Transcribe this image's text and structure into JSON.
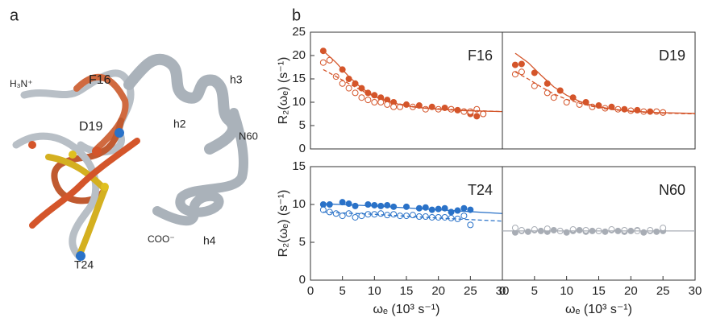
{
  "figure": {
    "panel_a": "a",
    "panel_b": "b",
    "structure_labels": [
      "H₃N⁺",
      "F16",
      "D19",
      "T24",
      "h3",
      "h2",
      "N60",
      "COO⁻",
      "h4"
    ]
  },
  "chart_data": [
    {
      "type": "scatter",
      "title": "F16",
      "ylabel": "R₂(ωₑ) (s⁻¹)",
      "xlim": [
        0,
        30
      ],
      "ylim": [
        0,
        25
      ],
      "yticks": [
        0,
        5,
        10,
        15,
        20,
        25
      ],
      "series": [
        {
          "style": "filled",
          "color": "#d4552a",
          "x": [
            2,
            3,
            5,
            6,
            7,
            8,
            9,
            10,
            11,
            12,
            13,
            15,
            17,
            19,
            21,
            22,
            23,
            24,
            25,
            26,
            27
          ],
          "values": [
            21,
            19,
            17,
            15,
            14,
            13,
            12,
            11.5,
            11,
            10.5,
            10,
            9.5,
            9.3,
            9,
            8.8,
            8.5,
            8.3,
            8,
            7.5,
            7,
            7.5
          ]
        },
        {
          "style": "open",
          "color": "#d4552a",
          "x": [
            2,
            3,
            4,
            5,
            6,
            7,
            8,
            9,
            10,
            11,
            12,
            13,
            14,
            16,
            18,
            20,
            22,
            24,
            25,
            26,
            27
          ],
          "values": [
            18.5,
            19,
            15.5,
            14,
            13,
            12,
            11,
            10.5,
            10,
            10,
            9.5,
            9,
            9,
            9,
            8.5,
            8.5,
            8.5,
            8,
            8,
            8.5,
            7.5
          ]
        },
        {
          "style": "line",
          "color": "#d4552a",
          "x": [
            2,
            4,
            6,
            8,
            10,
            12,
            14,
            16,
            18,
            20,
            24,
            30
          ],
          "values": [
            21,
            18.5,
            15.5,
            13,
            11.3,
            10.2,
            9.5,
            9,
            8.7,
            8.5,
            8.2,
            8
          ]
        },
        {
          "style": "dashed",
          "color": "#d4552a",
          "x": [
            2,
            4,
            6,
            8,
            10,
            12,
            14,
            16,
            18,
            20,
            24,
            30
          ],
          "values": [
            17,
            15.5,
            14,
            12.5,
            11.2,
            10.3,
            9.6,
            9.1,
            8.8,
            8.6,
            8.3,
            8
          ]
        }
      ]
    },
    {
      "type": "scatter",
      "title": "D19",
      "xlim": [
        0,
        30
      ],
      "ylim": [
        0,
        25
      ],
      "series": [
        {
          "style": "filled",
          "color": "#d4552a",
          "x": [
            2,
            3,
            5,
            7,
            9,
            11,
            13,
            15,
            17,
            19,
            21,
            23,
            25
          ],
          "values": [
            18,
            18.2,
            16.3,
            14,
            12.5,
            11,
            10,
            9.3,
            9,
            8.5,
            8.3,
            8,
            7.8
          ]
        },
        {
          "style": "open",
          "color": "#d4552a",
          "x": [
            2,
            3,
            5,
            7,
            8,
            10,
            12,
            14,
            16,
            18,
            20,
            22,
            24,
            25
          ],
          "values": [
            16,
            16.5,
            13.5,
            12,
            11,
            10,
            9.5,
            9,
            8.7,
            8.5,
            8.2,
            8,
            8,
            7.8
          ]
        },
        {
          "style": "line",
          "color": "#d4552a",
          "x": [
            2,
            4,
            6,
            8,
            10,
            12,
            14,
            16,
            18,
            20,
            24,
            30
          ],
          "values": [
            20.5,
            18.5,
            15.8,
            13.3,
            11.5,
            10.2,
            9.3,
            8.8,
            8.4,
            8.1,
            7.8,
            7.6
          ]
        },
        {
          "style": "dashed",
          "color": "#d4552a",
          "x": [
            2,
            4,
            6,
            8,
            10,
            12,
            14,
            16,
            18,
            20,
            24,
            30
          ],
          "values": [
            16.5,
            15,
            13.3,
            11.8,
            10.6,
            9.8,
            9.1,
            8.6,
            8.3,
            8,
            7.7,
            7.5
          ]
        }
      ]
    },
    {
      "type": "scatter",
      "title": "T24",
      "ylabel": "R₂(ωₑ) (s⁻¹)",
      "xlabel": "ωₑ (10³ s⁻¹)",
      "xlim": [
        0,
        30
      ],
      "ylim": [
        0,
        15
      ],
      "xticks": [
        0,
        5,
        10,
        15,
        20,
        25,
        30
      ],
      "yticks": [
        0,
        5,
        10,
        15
      ],
      "series": [
        {
          "style": "filled",
          "color": "#2a72c8",
          "x": [
            2,
            3,
            5,
            6,
            7,
            9,
            10,
            11,
            12,
            13,
            15,
            17,
            18,
            19,
            20,
            21,
            22,
            23,
            24,
            25
          ],
          "values": [
            10,
            10,
            10.3,
            10.1,
            9.8,
            10,
            9.9,
            9.8,
            9.9,
            9.7,
            9.7,
            9.5,
            9.6,
            9.3,
            9.4,
            9.5,
            9,
            9.2,
            9.5,
            9.3
          ]
        },
        {
          "style": "open",
          "color": "#2a72c8",
          "x": [
            2,
            3,
            4,
            5,
            6,
            7,
            8,
            9,
            10,
            11,
            12,
            13,
            14,
            15,
            16,
            17,
            18,
            19,
            20,
            21,
            22,
            23,
            24,
            25
          ],
          "values": [
            9.3,
            9,
            8.8,
            8.5,
            8.8,
            8.3,
            8.5,
            8.7,
            8.7,
            8.8,
            8.6,
            8.7,
            8.5,
            8.5,
            8.6,
            8.4,
            8.4,
            8.3,
            8.3,
            8.3,
            8.2,
            8.1,
            8.5,
            7.3
          ]
        },
        {
          "style": "line",
          "color": "#2a72c8",
          "x": [
            2,
            10,
            20,
            30
          ],
          "values": [
            10.1,
            9.8,
            9.3,
            8.8
          ]
        },
        {
          "style": "dashed",
          "color": "#2a72c8",
          "x": [
            2,
            10,
            20,
            30
          ],
          "values": [
            9,
            8.7,
            8.2,
            7.8
          ]
        }
      ]
    },
    {
      "type": "scatter",
      "title": "N60",
      "xlabel": "ωₑ (10³ s⁻¹)",
      "xlim": [
        0,
        30
      ],
      "ylim": [
        0,
        15
      ],
      "xticks": [
        0,
        5,
        10,
        15,
        20,
        25,
        30
      ],
      "series": [
        {
          "style": "filled",
          "color": "#a8adb5",
          "x": [
            2,
            3,
            4,
            5,
            6,
            7,
            8,
            9,
            10,
            11,
            12,
            13,
            14,
            15,
            16,
            17,
            18,
            19,
            20,
            21,
            22,
            23,
            24,
            25
          ],
          "values": [
            6.3,
            6.5,
            6.4,
            6.6,
            6.5,
            6.4,
            6.6,
            6.5,
            6.3,
            6.5,
            6.6,
            6.4,
            6.5,
            6.5,
            6.4,
            6.6,
            6.5,
            6.4,
            6.5,
            6.6,
            6.3,
            6.5,
            6.4,
            6.5
          ]
        },
        {
          "style": "open",
          "color": "#a8adb5",
          "x": [
            2,
            3,
            5,
            7,
            9,
            11,
            13,
            15,
            17,
            19,
            21,
            23,
            25
          ],
          "values": [
            6.9,
            6.6,
            6.7,
            6.8,
            6.5,
            6.7,
            6.6,
            6.5,
            6.7,
            6.6,
            6.5,
            6.6,
            6.9
          ]
        },
        {
          "style": "line",
          "color": "#a8adb5",
          "x": [
            0,
            30
          ],
          "values": [
            6.5,
            6.5
          ]
        }
      ]
    }
  ]
}
